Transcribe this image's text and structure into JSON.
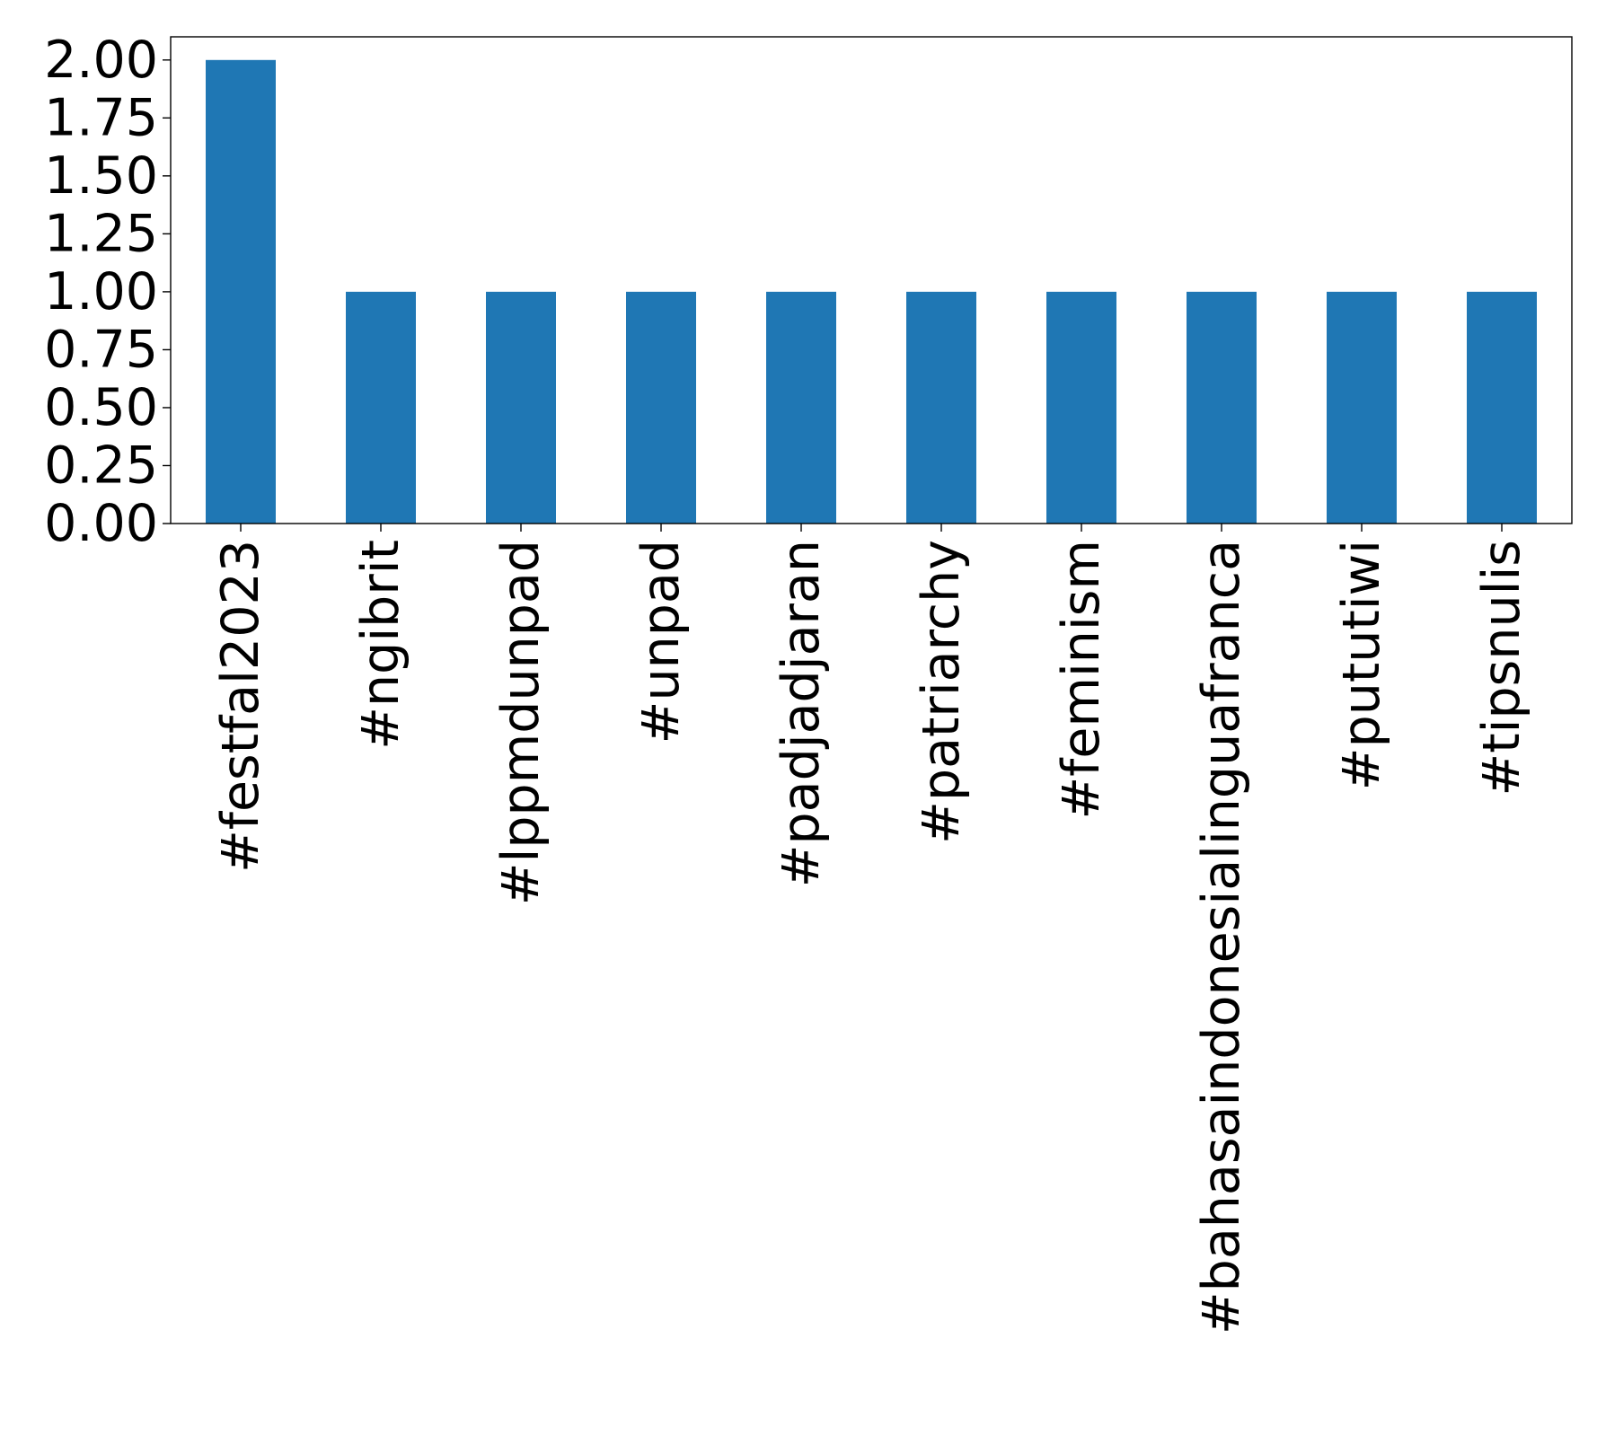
{
  "chart_data": {
    "type": "bar",
    "title": "",
    "xlabel": "",
    "ylabel": "",
    "categories": [
      "#festfal2023",
      "#ngibrit",
      "#lppmdunpad",
      "#unpad",
      "#padjadjaran",
      "#patriarchy",
      "#feminism",
      "#bahasaindonesialinguafranca",
      "#pututiwi",
      "#tipsnulis"
    ],
    "values": [
      2,
      1,
      1,
      1,
      1,
      1,
      1,
      1,
      1,
      1
    ],
    "ylim": [
      0,
      2.1
    ],
    "yticks": [
      0,
      0.25,
      0.5,
      0.75,
      1.0,
      1.25,
      1.5,
      1.75,
      2.0
    ],
    "ytick_labels": [
      "0.00",
      "0.25",
      "0.50",
      "0.75",
      "1.00",
      "1.25",
      "1.50",
      "1.75",
      "2.00"
    ],
    "bar_color": "#1f77b4",
    "grid": false,
    "legend": "none"
  }
}
